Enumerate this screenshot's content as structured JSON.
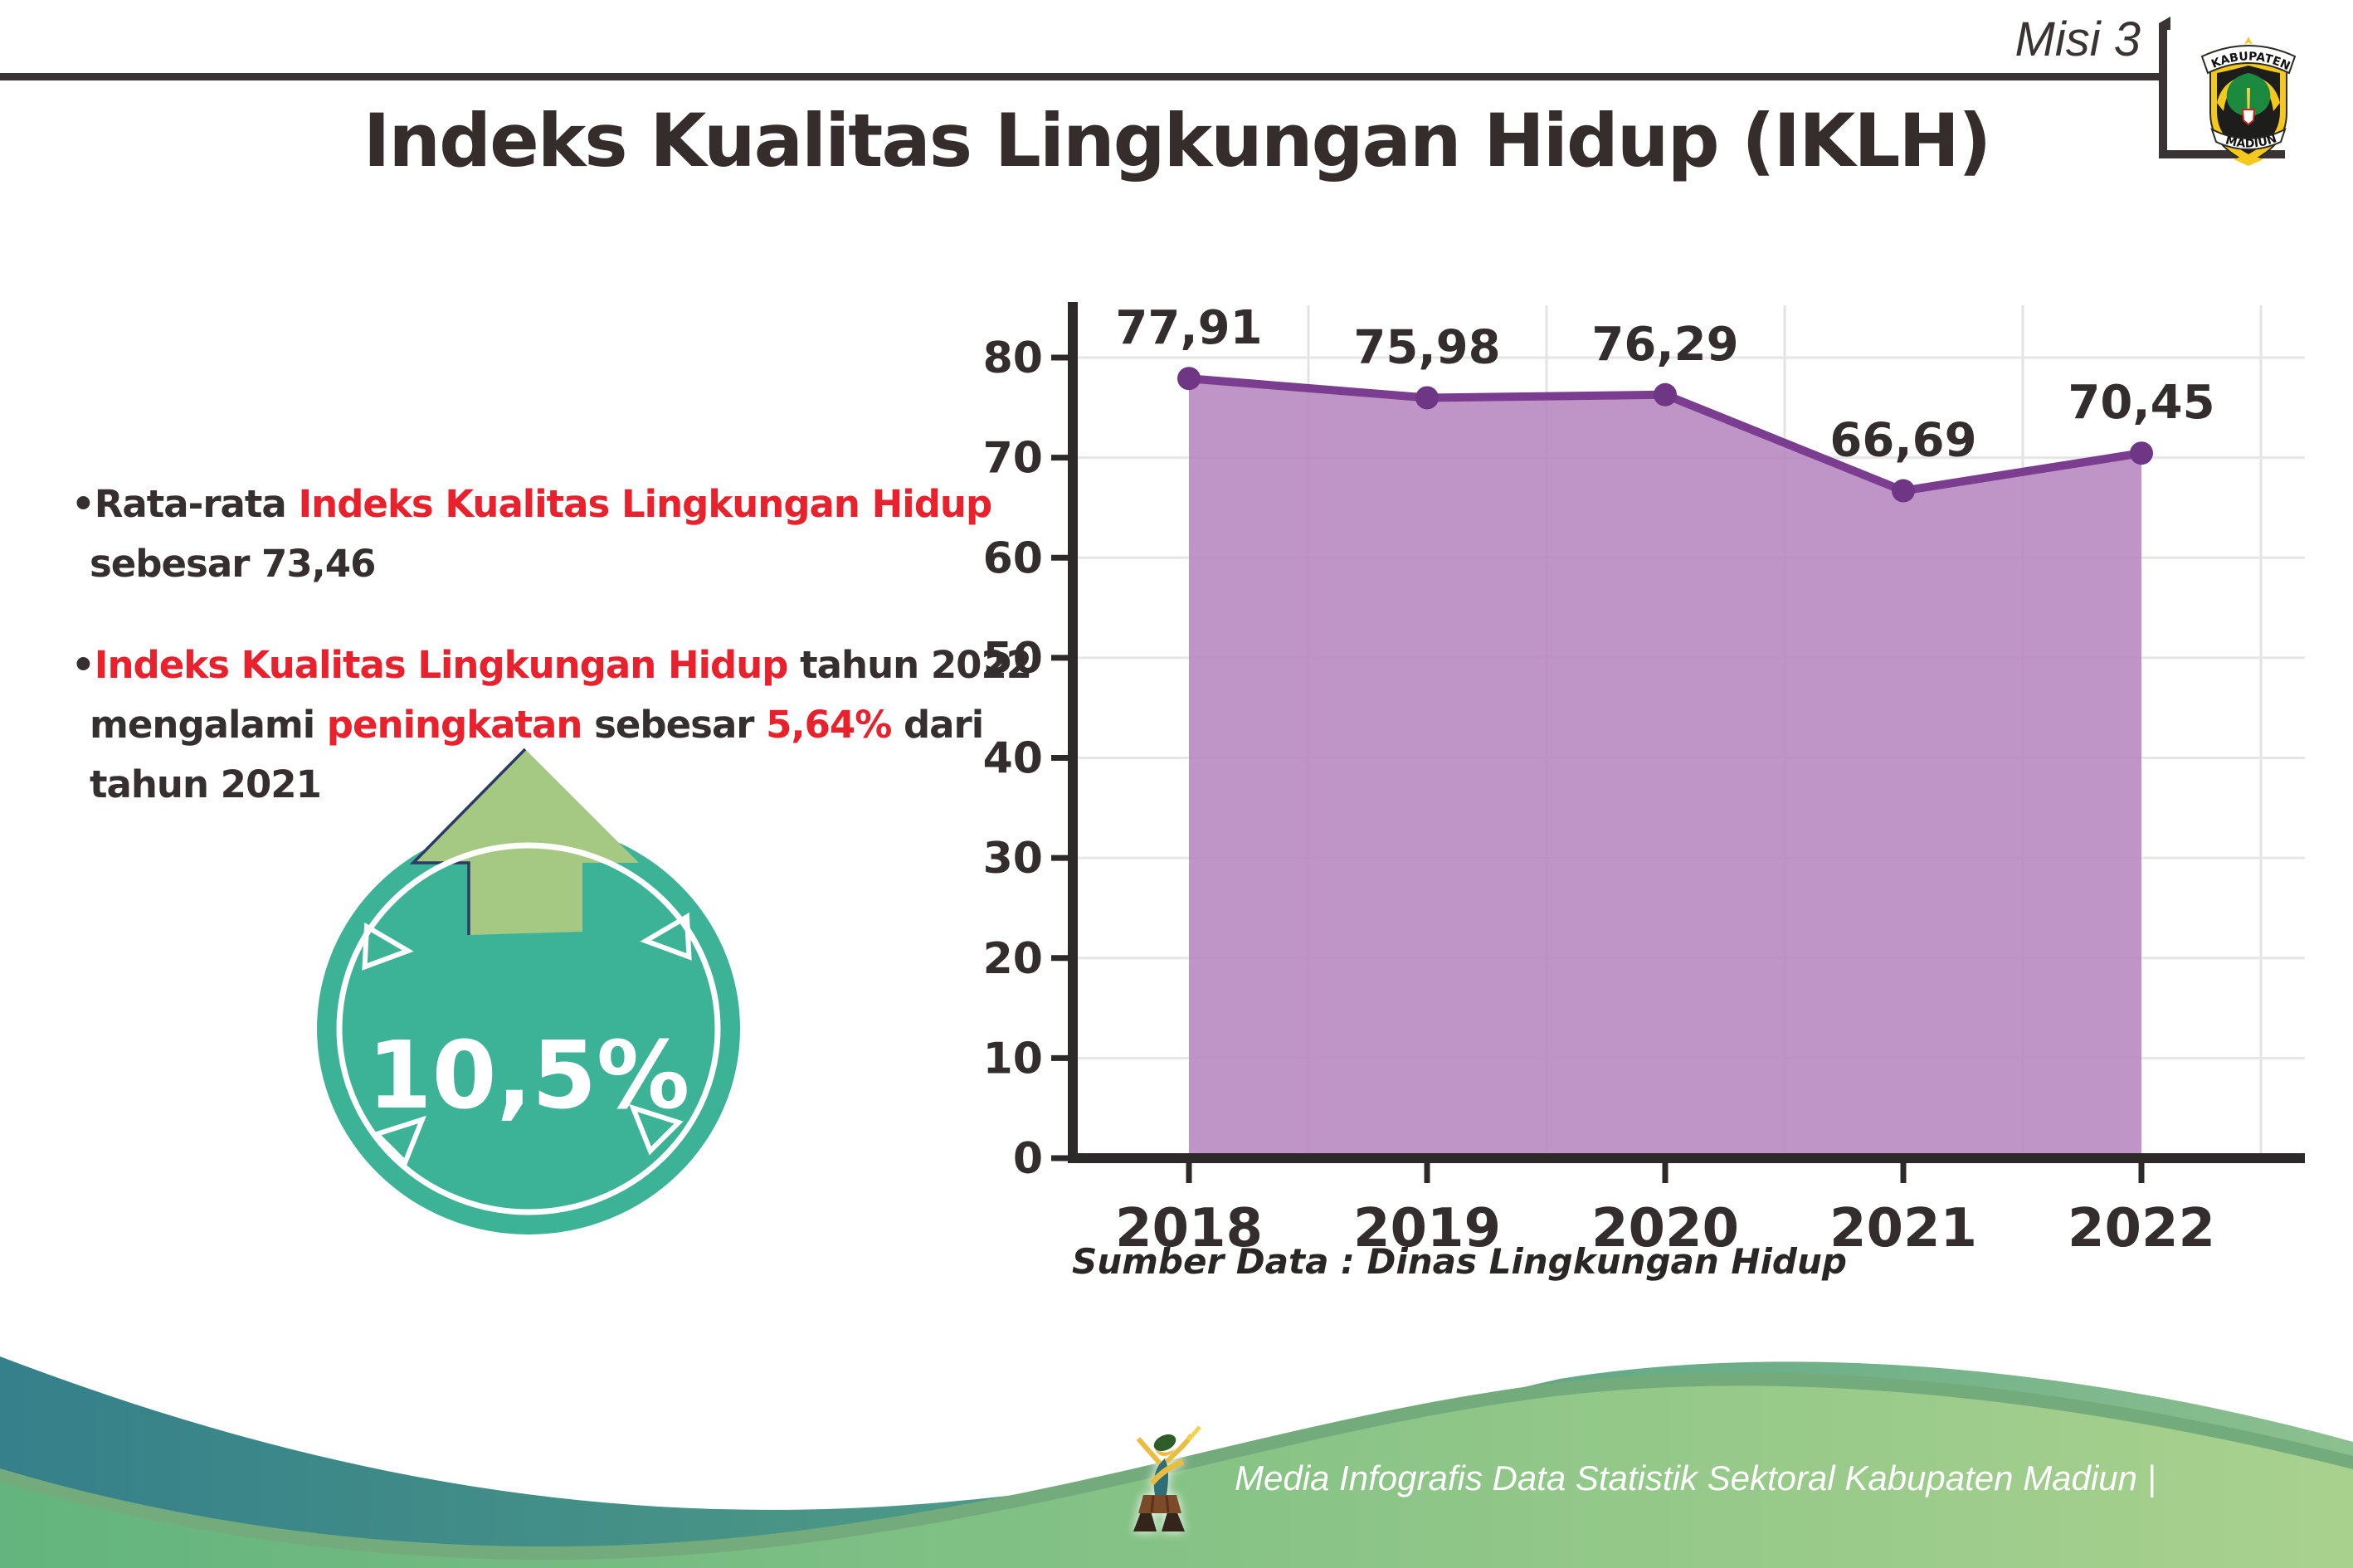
{
  "header": {
    "misi_label": "Misi 3",
    "title": "Indeks Kualitas Lingkungan Hidup (IKLH)",
    "logo_top": "KABUPATEN",
    "logo_bottom": "MADIUN"
  },
  "left_panel": {
    "bullet1": {
      "lines": [
        [
          {
            "t": "•Rata-rata ",
            "c": "d"
          },
          {
            "t": "Indeks Kualitas Lingkungan Hidup",
            "c": "r"
          }
        ],
        [
          {
            "t": "sebesar 73,46",
            "c": "d"
          }
        ]
      ]
    },
    "bullet2": {
      "lines": [
        [
          {
            "t": "•",
            "c": "d"
          },
          {
            "t": "Indeks Kualitas Lingkungan Hidup",
            "c": "r"
          },
          {
            "t": " tahun 2022",
            "c": "d"
          }
        ],
        [
          {
            "t": "mengalami ",
            "c": "d"
          },
          {
            "t": "peningkatan",
            "c": "r"
          },
          {
            "t": " sebesar ",
            "c": "d"
          },
          {
            "t": "5,64%",
            "c": "r"
          },
          {
            "t": " dari",
            "c": "d"
          }
        ],
        [
          {
            "t": "tahun 2021",
            "c": "d"
          }
        ]
      ]
    }
  },
  "badge": {
    "value": "10,5%",
    "circle_color": "#3cb296",
    "arrow_color": "#a5c983"
  },
  "chart_data": {
    "type": "area",
    "categories": [
      "2018",
      "2019",
      "2020",
      "2021",
      "2022"
    ],
    "values": [
      77.91,
      75.98,
      76.29,
      66.69,
      70.45
    ],
    "value_labels": [
      "77,91",
      "75,98",
      "76,29",
      "66,69",
      "70,45"
    ],
    "ylim": [
      0,
      80
    ],
    "ytick_step": 10,
    "grid": true,
    "legend": "none",
    "line_color": "#7b3d90",
    "marker_color": "#6e3684",
    "fill_color": "#b685bf",
    "axis_color": "#2e2929",
    "label_color": "#342d2d",
    "source_note": "Sumber Data : Dinas Lingkungan Hidup"
  },
  "footer": {
    "text": "Media Infografis Data Statistik Sektoral Kabupaten Madiun |",
    "teal_color": "#35808a",
    "green_color": "#63b47e"
  }
}
